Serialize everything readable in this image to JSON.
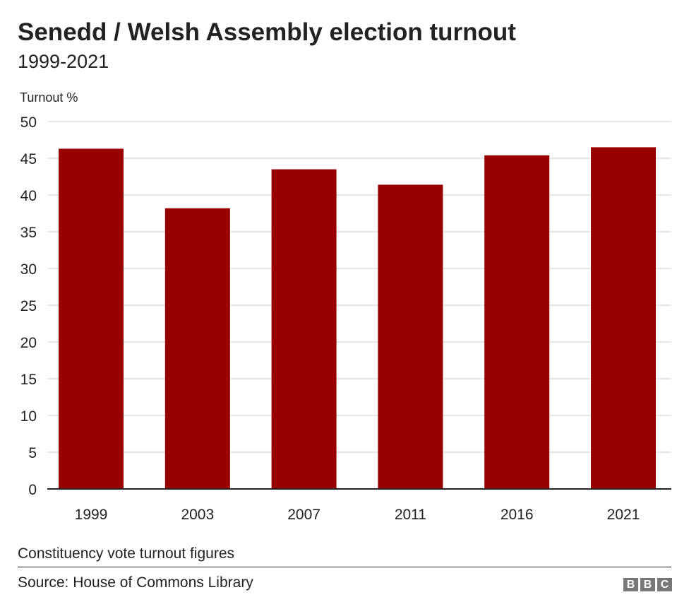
{
  "chart_data": {
    "type": "bar",
    "title": "Senedd / Welsh Assembly election turnout",
    "subtitle": "1999-2021",
    "ylabel": "Turnout %",
    "xlabel": "",
    "categories": [
      "1999",
      "2003",
      "2007",
      "2011",
      "2016",
      "2021"
    ],
    "values": [
      46.3,
      38.2,
      43.5,
      41.4,
      45.4,
      46.5
    ],
    "ylim": [
      0,
      50
    ],
    "yticks": [
      0,
      5,
      10,
      15,
      20,
      25,
      30,
      35,
      40,
      45,
      50
    ],
    "grid": true,
    "bar_color": "#990000",
    "note": "Constituency vote turnout figures",
    "source": "Source: House of Commons Library"
  },
  "logo": "BBC"
}
